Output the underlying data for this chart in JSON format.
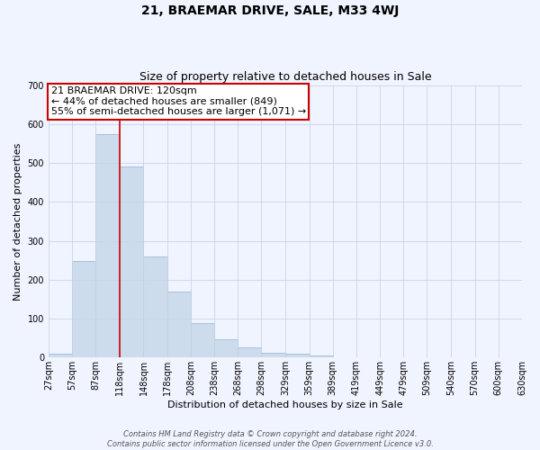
{
  "title": "21, BRAEMAR DRIVE, SALE, M33 4WJ",
  "subtitle": "Size of property relative to detached houses in Sale",
  "xlabel": "Distribution of detached houses by size in Sale",
  "ylabel": "Number of detached properties",
  "bin_edges": [
    27,
    57,
    87,
    118,
    148,
    178,
    208,
    238,
    268,
    298,
    329,
    359,
    389,
    419,
    449,
    479,
    509,
    540,
    570,
    600,
    630
  ],
  "bar_heights": [
    10,
    248,
    575,
    490,
    260,
    170,
    88,
    47,
    27,
    13,
    10,
    5,
    1,
    0,
    0,
    1,
    0,
    0,
    0,
    0
  ],
  "bar_color": "#ccdcec",
  "bar_edge_color": "#a8c0d8",
  "vline_x": 118,
  "vline_color": "#cc0000",
  "ylim": [
    0,
    700
  ],
  "yticks": [
    0,
    100,
    200,
    300,
    400,
    500,
    600,
    700
  ],
  "annotation_title": "21 BRAEMAR DRIVE: 120sqm",
  "annotation_line1": "← 44% of detached houses are smaller (849)",
  "annotation_line2": "55% of semi-detached houses are larger (1,071) →",
  "annotation_box_facecolor": "#ffffff",
  "annotation_box_edgecolor": "#cc0000",
  "footer_line1": "Contains HM Land Registry data © Crown copyright and database right 2024.",
  "footer_line2": "Contains public sector information licensed under the Open Government Licence v3.0.",
  "background_color": "#f0f4ff",
  "grid_color": "#c8d4e8",
  "title_fontsize": 10,
  "subtitle_fontsize": 9,
  "ylabel_fontsize": 8,
  "xlabel_fontsize": 8,
  "tick_fontsize": 7,
  "annotation_fontsize": 8,
  "footer_fontsize": 6
}
